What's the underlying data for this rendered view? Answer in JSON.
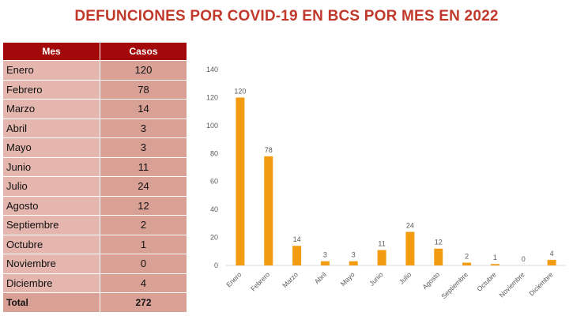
{
  "title": "DEFUNCIONES POR COVID-19 EN BCS POR MES EN 2022",
  "table": {
    "headers": [
      "Mes",
      "Casos"
    ],
    "rows": [
      {
        "mes": "Enero",
        "casos": "120"
      },
      {
        "mes": "Febrero",
        "casos": "78"
      },
      {
        "mes": "Marzo",
        "casos": "14"
      },
      {
        "mes": "Abril",
        "casos": "3"
      },
      {
        "mes": "Mayo",
        "casos": "3"
      },
      {
        "mes": "Junio",
        "casos": "11"
      },
      {
        "mes": "Julio",
        "casos": "24"
      },
      {
        "mes": "Agosto",
        "casos": "12"
      },
      {
        "mes": "Septiembre",
        "casos": "2"
      },
      {
        "mes": "Octubre",
        "casos": "1"
      },
      {
        "mes": "Noviembre",
        "casos": "0"
      },
      {
        "mes": "Diciembre",
        "casos": "4"
      }
    ],
    "total_label": "Total",
    "total_value": "272"
  },
  "colors": {
    "header_bg": "#a3080b",
    "title": "#c0392b",
    "bar": "#f39c12"
  },
  "chart_data": {
    "type": "bar",
    "title": "",
    "categories": [
      "Enero",
      "Febrero",
      "Marzo",
      "Abril",
      "Mayo",
      "Junio",
      "Julio",
      "Agosto",
      "Septiembre",
      "Octubre",
      "Noviembre",
      "Diciembre"
    ],
    "values": [
      120,
      78,
      14,
      3,
      3,
      11,
      24,
      12,
      2,
      1,
      0,
      4
    ],
    "ylim": [
      0,
      140
    ],
    "yticks": [
      0,
      20,
      40,
      60,
      80,
      100,
      120,
      140
    ],
    "xlabel": "",
    "ylabel": "",
    "grid": false,
    "legend": "none"
  }
}
